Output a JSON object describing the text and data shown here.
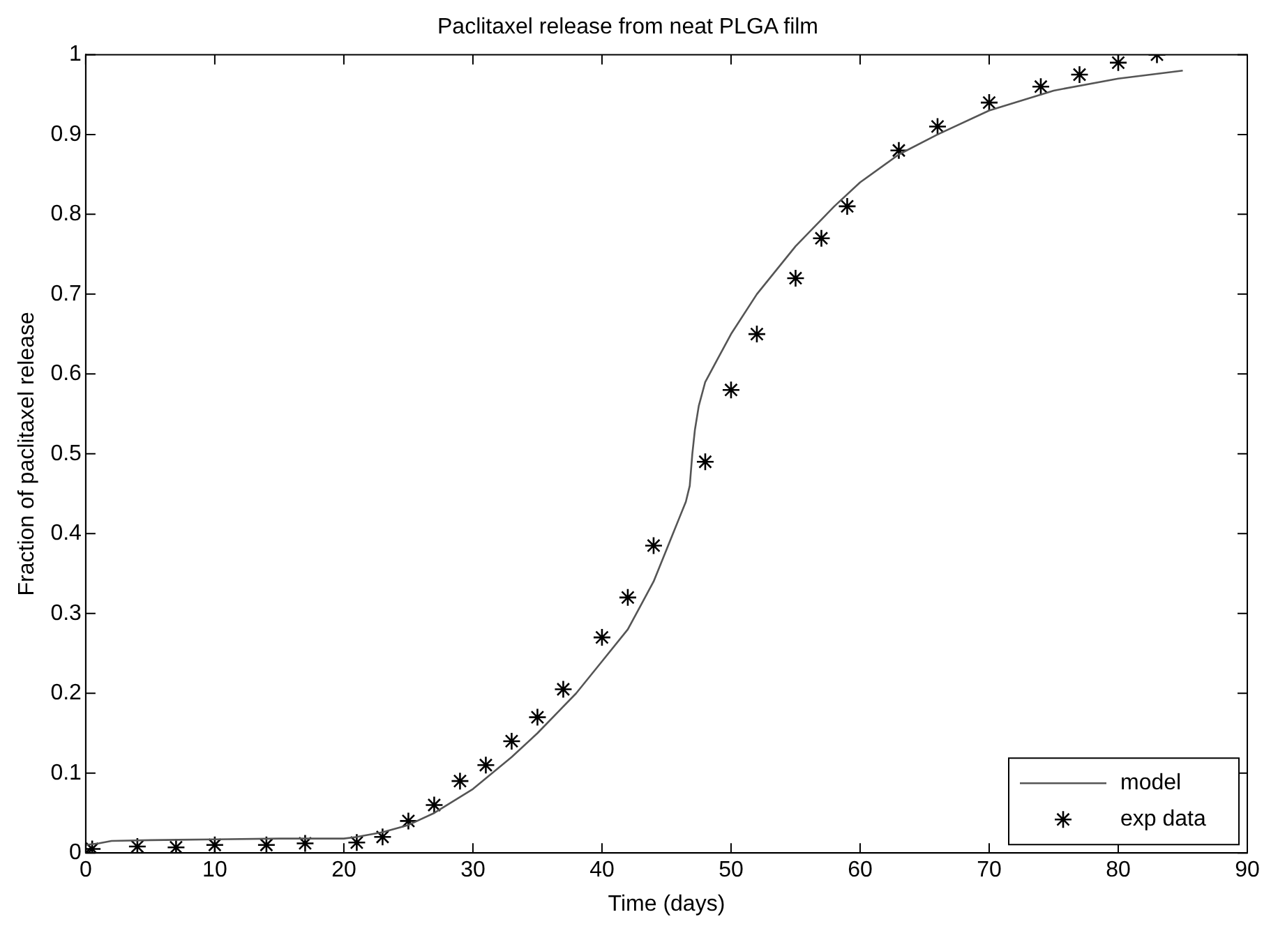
{
  "chart_data": {
    "type": "line",
    "title": "Paclitaxel release from neat PLGA film",
    "xlabel": "Time (days)",
    "ylabel": "Fraction of paclitaxel release",
    "xlim": [
      0,
      90
    ],
    "xticks": [
      0,
      10,
      20,
      30,
      40,
      50,
      60,
      70,
      80,
      90
    ],
    "ylim": [
      0,
      1
    ],
    "yticks": [
      0,
      0.1,
      0.2,
      0.3,
      0.4,
      0.5,
      0.6,
      0.7,
      0.8,
      0.9,
      1
    ],
    "grid": false,
    "legend": "bottom right",
    "series": [
      {
        "name": "model",
        "color": "#555555",
        "marker": "none",
        "line_style": "solid",
        "x": [
          0,
          1,
          2,
          5,
          10,
          15,
          20,
          21,
          23,
          25,
          27,
          30,
          33,
          35,
          38,
          40,
          42,
          43,
          44,
          45,
          46,
          46.5,
          46.8,
          47,
          47.2,
          47.5,
          48,
          49,
          50,
          52,
          55,
          58,
          60,
          63,
          66,
          70,
          75,
          80,
          85
        ],
        "values": [
          0.01,
          0.012,
          0.015,
          0.016,
          0.017,
          0.018,
          0.018,
          0.02,
          0.026,
          0.035,
          0.05,
          0.08,
          0.12,
          0.15,
          0.2,
          0.24,
          0.28,
          0.31,
          0.34,
          0.38,
          0.42,
          0.44,
          0.46,
          0.5,
          0.53,
          0.56,
          0.59,
          0.62,
          0.65,
          0.7,
          0.76,
          0.81,
          0.84,
          0.875,
          0.9,
          0.93,
          0.955,
          0.97,
          0.98
        ]
      },
      {
        "name": "exp data",
        "type": "scatter",
        "color": "#000000",
        "marker": "cross",
        "x": [
          0,
          0.5,
          4,
          7,
          10,
          14,
          17,
          21,
          23,
          25,
          27,
          29,
          31,
          33,
          35,
          37,
          40,
          42,
          44,
          48,
          50,
          52,
          55,
          57,
          59,
          63,
          66,
          70,
          74,
          77,
          80,
          83
        ],
        "values": [
          0,
          0.005,
          0.008,
          0.007,
          0.01,
          0.01,
          0.012,
          0.013,
          0.02,
          0.04,
          0.06,
          0.09,
          0.11,
          0.14,
          0.17,
          0.205,
          0.27,
          0.32,
          0.385,
          0.49,
          0.58,
          0.65,
          0.72,
          0.77,
          0.81,
          0.88,
          0.91,
          0.94,
          0.96,
          0.975,
          0.99,
          1.0
        ]
      }
    ]
  }
}
